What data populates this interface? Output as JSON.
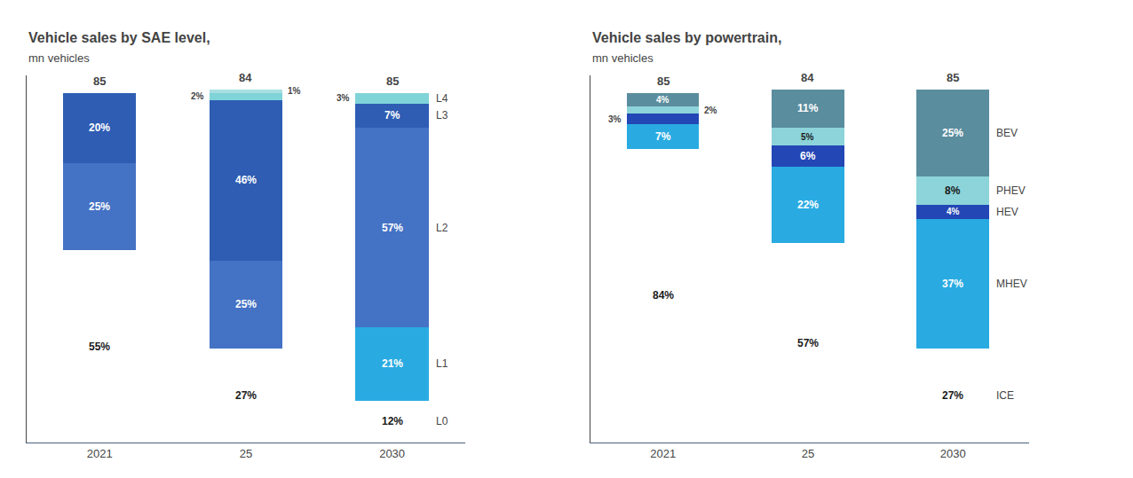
{
  "chart_data": [
    {
      "type": "bar",
      "stacked": true,
      "title": "Vehicle sales by SAE level,",
      "subtitle": "mn vehicles",
      "categories": [
        "2021",
        "25",
        "2030"
      ],
      "series": [
        {
          "name": "L0",
          "color": "#ffffff",
          "values": [
            55,
            27,
            12
          ],
          "value_labels": [
            "55%",
            "27%",
            "12%"
          ]
        },
        {
          "name": "L1",
          "color": "#29abe2",
          "values": [
            0,
            0,
            21
          ],
          "value_labels": [
            null,
            null,
            "21%"
          ]
        },
        {
          "name": "L2",
          "color": "#4472c4",
          "values": [
            25,
            25,
            57
          ],
          "value_labels": [
            "25%",
            "25%",
            "57%"
          ]
        },
        {
          "name": "L3",
          "color": "#2e5db3",
          "values": [
            20,
            46,
            7
          ],
          "value_labels": [
            "20%",
            "46%",
            "7%"
          ]
        },
        {
          "name": "L4",
          "color": "#7fd4d8",
          "values": [
            0,
            2,
            3
          ],
          "value_labels": [
            null,
            "2%",
            "3%"
          ]
        },
        {
          "color": "#a8dfe3",
          "values": [
            0,
            1,
            0
          ],
          "value_labels": [
            null,
            "1%",
            null
          ]
        }
      ],
      "totals": [
        85,
        84,
        85
      ],
      "data_labels": true,
      "ylim": [
        0,
        105
      ],
      "grid": false,
      "tick_labels": "x"
    },
    {
      "type": "bar",
      "stacked": true,
      "title": "Vehicle sales by powertrain,",
      "subtitle": "mn vehicles",
      "categories": [
        "2021",
        "25",
        "2030"
      ],
      "series": [
        {
          "name": "ICE",
          "color": "#ffffff",
          "values": [
            84,
            57,
            27
          ],
          "value_labels": [
            "84%",
            "57%",
            "27%"
          ]
        },
        {
          "name": "MHEV",
          "color": "#29abe2",
          "values": [
            7,
            22,
            37
          ],
          "value_labels": [
            "7%",
            "22%",
            "37%"
          ]
        },
        {
          "name": "HEV",
          "color": "#2347b5",
          "values": [
            3,
            6,
            4
          ],
          "value_labels": [
            "3%",
            "6%",
            "4%"
          ]
        },
        {
          "name": "PHEV",
          "color": "#8cd4da",
          "values": [
            2,
            5,
            8
          ],
          "value_labels": [
            "2%",
            "5%",
            "8%"
          ]
        },
        {
          "name": "BEV",
          "color": "#5a8d9e",
          "values": [
            4,
            11,
            25
          ],
          "value_labels": [
            "4%",
            "11%",
            "25%"
          ]
        }
      ],
      "totals": [
        85,
        84,
        85
      ],
      "data_labels": true,
      "ylim": [
        0,
        105
      ],
      "grid": false,
      "tick_labels": "x"
    }
  ]
}
